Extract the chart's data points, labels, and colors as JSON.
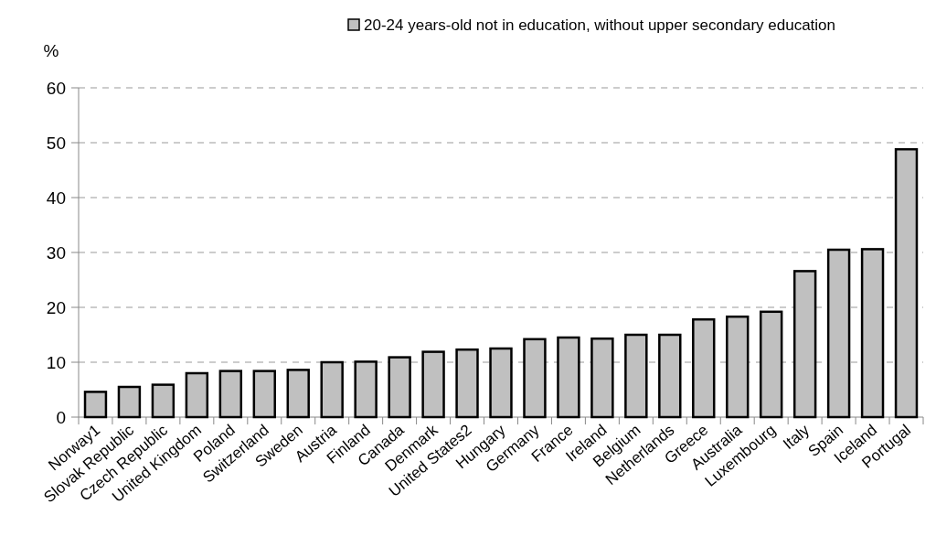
{
  "chart_data": {
    "type": "bar",
    "ylabel": "%",
    "categories": [
      "Norway1",
      "Slovak Republic",
      "Czech Republic",
      "United Kingdom",
      "Poland",
      "Switzerland",
      "Sweden",
      "Austria",
      "Finland",
      "Canada",
      "Denmark",
      "United States2",
      "Hungary",
      "Germany",
      "France",
      "Ireland",
      "Belgium",
      "Netherlands",
      "Greece",
      "Australia",
      "Luxembourg",
      "Italy",
      "Spain",
      "Iceland",
      "Portugal"
    ],
    "series": [
      {
        "name": "20-24 years-old not in education, without upper secondary education",
        "color": "#c0c0c0",
        "values": [
          4.6,
          5.5,
          5.9,
          8.0,
          8.4,
          8.4,
          8.6,
          10.0,
          10.1,
          10.9,
          11.9,
          12.3,
          12.5,
          14.2,
          14.5,
          14.3,
          15.0,
          15.0,
          17.8,
          18.3,
          19.2,
          26.6,
          30.5,
          30.6,
          48.8
        ]
      }
    ],
    "ylim": [
      0,
      60
    ],
    "yticks": [
      0,
      10,
      20,
      30,
      40,
      50,
      60
    ],
    "grid": "y",
    "legend": "top"
  }
}
